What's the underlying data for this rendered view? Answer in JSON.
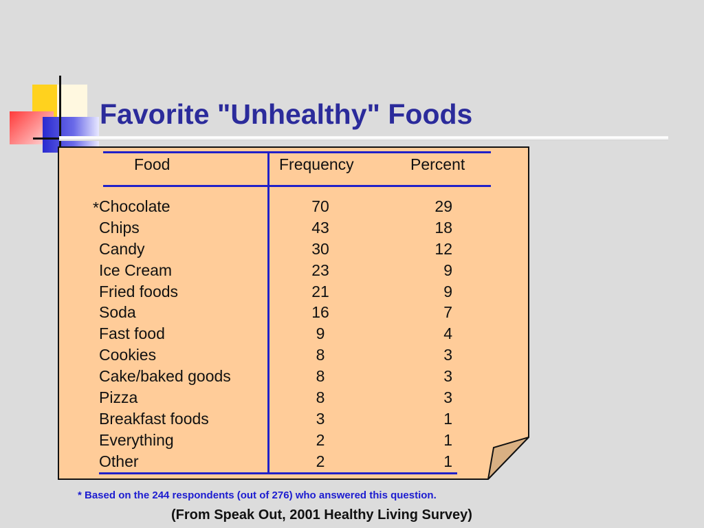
{
  "slide": {
    "title": "Favorite \"Unhealthy\" Foods"
  },
  "table": {
    "headers": {
      "food": "Food",
      "frequency": "Frequency",
      "percent": "Percent"
    },
    "rows": [
      {
        "marker": "*",
        "food": "Chocolate",
        "frequency": "70",
        "percent": "29"
      },
      {
        "marker": "",
        "food": "Chips",
        "frequency": "43",
        "percent": "18"
      },
      {
        "marker": "",
        "food": "Candy",
        "frequency": "30",
        "percent": "12"
      },
      {
        "marker": "",
        "food": "Ice Cream",
        "frequency": "23",
        "percent": "9"
      },
      {
        "marker": "",
        "food": "Fried foods",
        "frequency": "21",
        "percent": "9"
      },
      {
        "marker": "",
        "food": "Soda",
        "frequency": "16",
        "percent": "7"
      },
      {
        "marker": "",
        "food": "Fast food",
        "frequency": "9",
        "percent": "4"
      },
      {
        "marker": "",
        "food": "Cookies",
        "frequency": "8",
        "percent": "3"
      },
      {
        "marker": "",
        "food": "Cake/baked goods",
        "frequency": "8",
        "percent": "3"
      },
      {
        "marker": "",
        "food": "Pizza",
        "frequency": "8",
        "percent": "3"
      },
      {
        "marker": "",
        "food": "Breakfast foods",
        "frequency": "3",
        "percent": "1"
      },
      {
        "marker": "",
        "food": "Everything",
        "frequency": "2",
        "percent": "1"
      },
      {
        "marker": "",
        "food": "Other",
        "frequency": "2",
        "percent": "1"
      }
    ]
  },
  "footnote": "* Based on the 244 respondents (out of 276) who answered this question.",
  "source": "(From Speak Out, 2001 Healthy Living Survey)",
  "colors": {
    "title": "#2b2b9b",
    "card_fill": "#ffcc99",
    "rule": "#2020c8",
    "footnote": "#1c1cd0"
  }
}
